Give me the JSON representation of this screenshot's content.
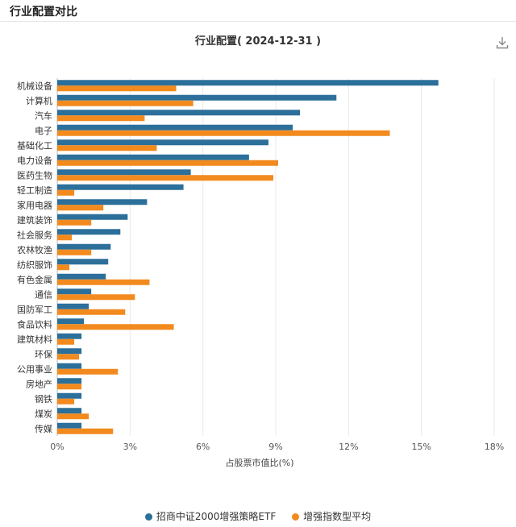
{
  "page": {
    "title": "行业配置对比"
  },
  "chart_data": {
    "type": "bar",
    "orientation": "horizontal",
    "title": "行业配置( 2024-12-31 )",
    "xlabel": "占股票市值比(%)",
    "ylabel": "",
    "xlim": [
      0,
      18
    ],
    "xticks": [
      "0%",
      "3%",
      "6%",
      "9%",
      "12%",
      "15%",
      "18%"
    ],
    "grid": "vertical",
    "legend_position": "bottom",
    "categories": [
      "机械设备",
      "计算机",
      "汽车",
      "电子",
      "基础化工",
      "电力设备",
      "医药生物",
      "轻工制造",
      "家用电器",
      "建筑装饰",
      "社会服务",
      "农林牧渔",
      "纺织服饰",
      "有色金属",
      "通信",
      "国防军工",
      "食品饮料",
      "建筑材料",
      "环保",
      "公用事业",
      "房地产",
      "钢铁",
      "煤炭",
      "传媒"
    ],
    "series": [
      {
        "name": "招商中证2000增强策略ETF",
        "color": "#2b6f9a",
        "values": [
          15.7,
          11.5,
          10.0,
          9.7,
          8.7,
          7.9,
          5.5,
          5.2,
          3.7,
          2.9,
          2.6,
          2.2,
          2.1,
          2.0,
          1.4,
          1.3,
          1.1,
          1.0,
          1.0,
          1.0,
          1.0,
          1.0,
          1.0,
          1.0
        ]
      },
      {
        "name": "增强指数型平均",
        "color": "#f28a1e",
        "values": [
          4.9,
          5.6,
          3.6,
          13.7,
          4.1,
          9.1,
          8.9,
          0.7,
          1.9,
          1.4,
          0.6,
          1.4,
          0.5,
          3.8,
          3.2,
          2.8,
          4.8,
          0.7,
          0.9,
          2.5,
          1.0,
          0.7,
          1.3,
          2.3
        ]
      }
    ]
  },
  "icons": {
    "download": "download-icon"
  }
}
